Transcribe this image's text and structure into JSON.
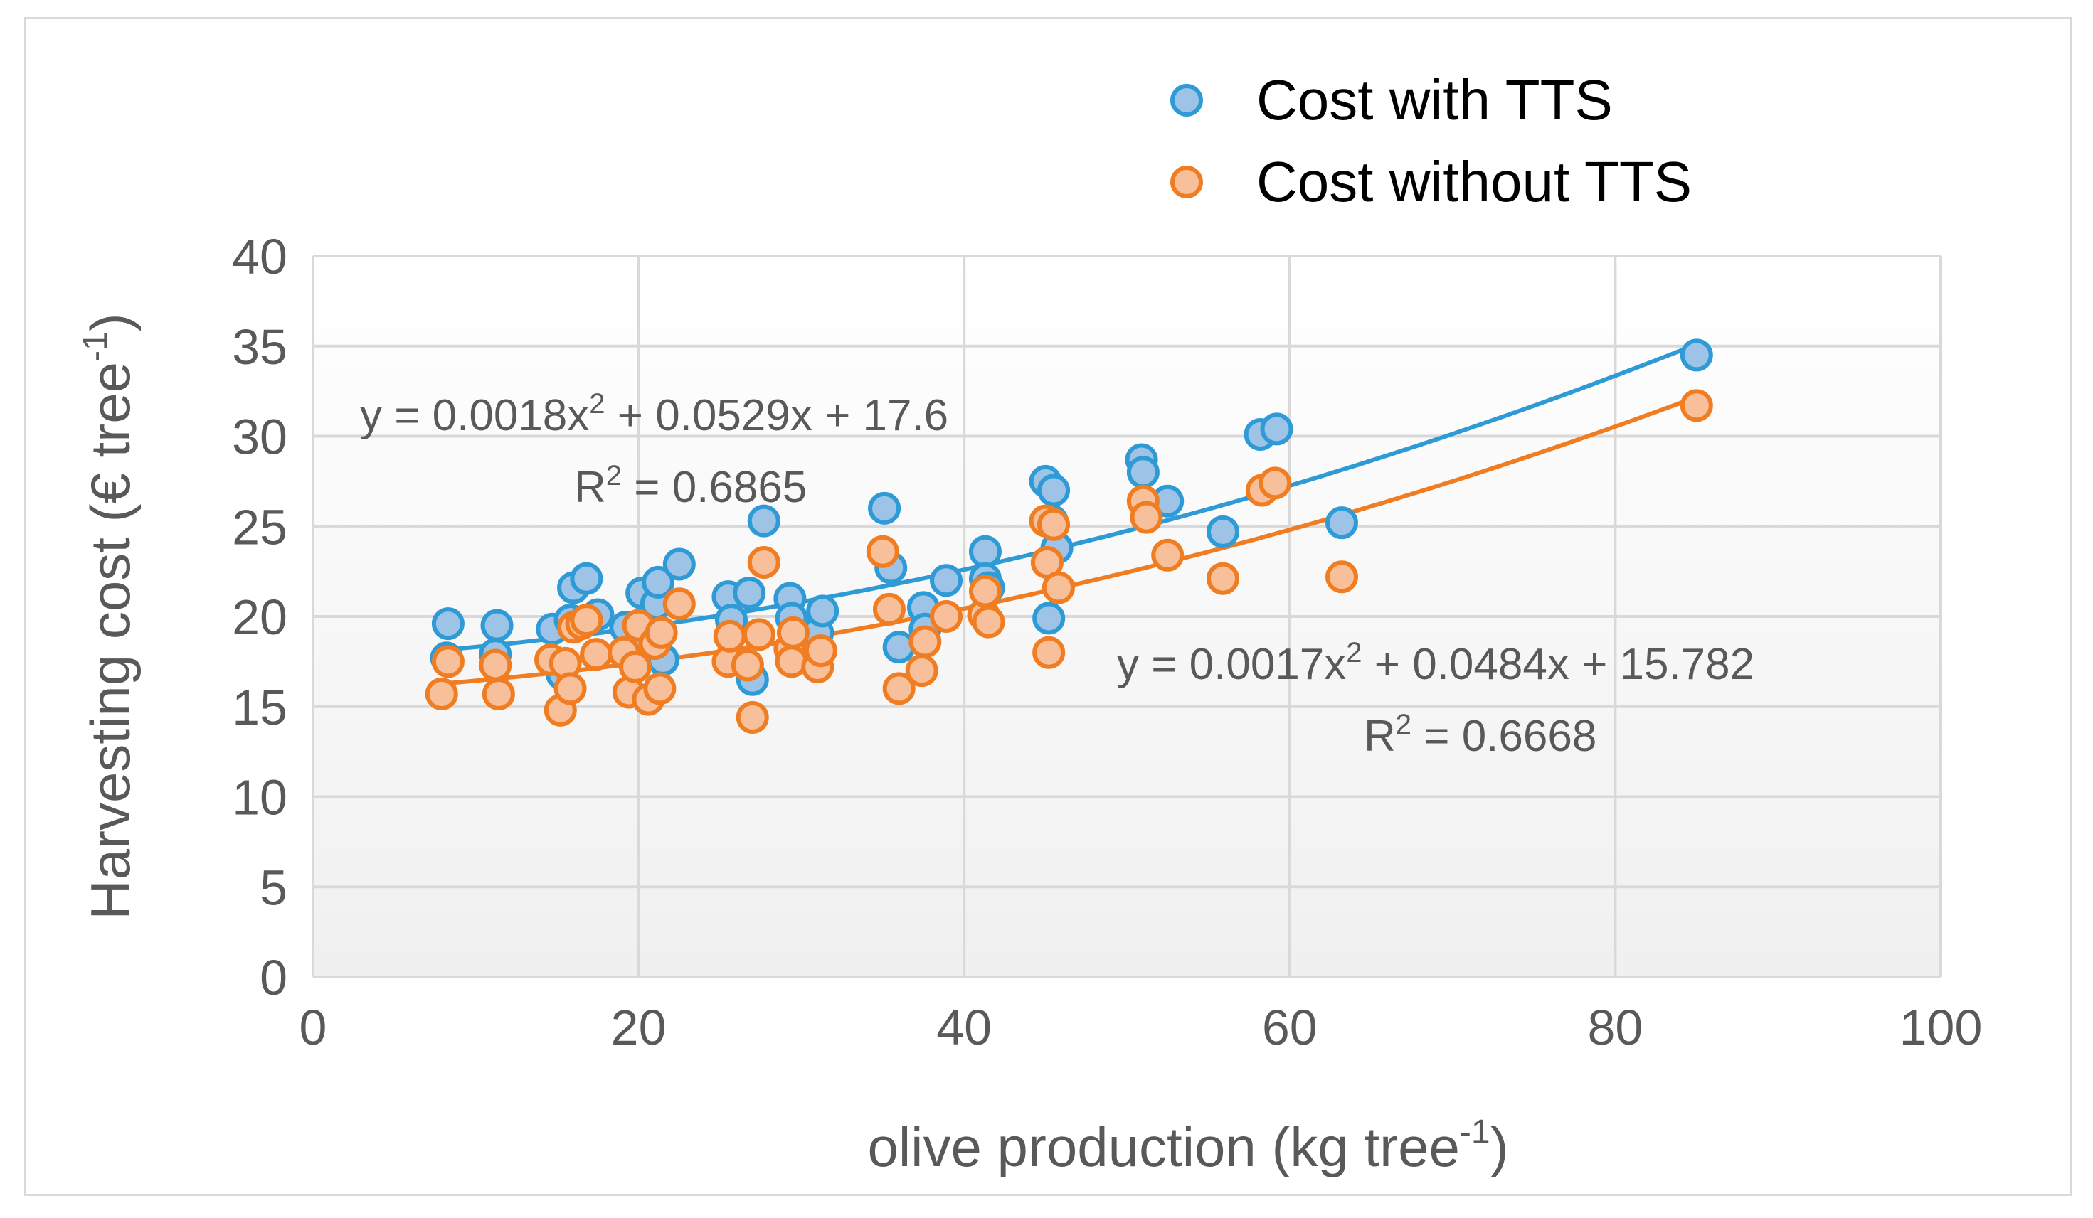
{
  "chart_data": {
    "type": "scatter",
    "title": "",
    "xlabel": "olive production (kg tree",
    "xlabel_sup": "-1",
    "xlabel_end": ")",
    "ylabel": "Harvesting cost (€ tree",
    "ylabel_sup": "-1",
    "ylabel_end": ")",
    "xlim": [
      0,
      100
    ],
    "ylim": [
      0,
      40
    ],
    "xticks": [
      "0",
      "20",
      "40",
      "60",
      "80",
      "100"
    ],
    "yticks": [
      "0",
      "5",
      "10",
      "15",
      "20",
      "25",
      "30",
      "35",
      "40"
    ],
    "grid": true,
    "legend_position": "top-right",
    "series": [
      {
        "name": "Cost with TTS",
        "color": "#2e9bd6",
        "fill": "#9dc3e6",
        "points": [
          [
            8.2,
            17.7
          ],
          [
            8.3,
            19.6
          ],
          [
            11.2,
            17.9
          ],
          [
            11.3,
            19.5
          ],
          [
            14.7,
            19.3
          ],
          [
            15.3,
            16.8
          ],
          [
            15.8,
            19.8
          ],
          [
            16.0,
            21.6
          ],
          [
            16.8,
            22.1
          ],
          [
            17.5,
            20.1
          ],
          [
            19.2,
            19.4
          ],
          [
            19.8,
            18.1
          ],
          [
            20.2,
            21.3
          ],
          [
            21.1,
            20.7
          ],
          [
            21.2,
            21.9
          ],
          [
            21.5,
            17.6
          ],
          [
            22.5,
            22.9
          ],
          [
            25.5,
            21.1
          ],
          [
            25.7,
            19.8
          ],
          [
            26.8,
            21.3
          ],
          [
            27.0,
            16.5
          ],
          [
            27.7,
            25.3
          ],
          [
            29.3,
            21.0
          ],
          [
            29.4,
            19.9
          ],
          [
            31.0,
            19.1
          ],
          [
            31.3,
            20.3
          ],
          [
            35.1,
            26.0
          ],
          [
            35.5,
            22.7
          ],
          [
            36.0,
            18.3
          ],
          [
            37.5,
            20.5
          ],
          [
            37.6,
            19.3
          ],
          [
            38.9,
            22.0
          ],
          [
            41.3,
            23.6
          ],
          [
            41.3,
            22.1
          ],
          [
            41.5,
            21.6
          ],
          [
            45.0,
            27.5
          ],
          [
            45.2,
            19.9
          ],
          [
            45.4,
            25.3
          ],
          [
            45.5,
            27.0
          ],
          [
            45.7,
            23.8
          ],
          [
            50.9,
            28.7
          ],
          [
            51.0,
            28.0
          ],
          [
            52.5,
            26.4
          ],
          [
            55.9,
            24.7
          ],
          [
            58.2,
            30.1
          ],
          [
            59.2,
            30.4
          ],
          [
            63.2,
            25.2
          ],
          [
            85.0,
            34.5
          ]
        ],
        "fit": {
          "a": 0.0018,
          "b": 0.0529,
          "c": 17.6,
          "range": [
            8.2,
            85.0
          ]
        },
        "equation": "y = 0.0018x",
        "equation_sup": "2",
        "equation_rest": " + 0.0529x + 17.6",
        "r2_label": "R",
        "r2_sup": "2",
        "r2_rest": " = 0.6865"
      },
      {
        "name": "Cost without TTS",
        "color": "#f07d22",
        "fill": "#f8c09a",
        "points": [
          [
            7.9,
            15.7
          ],
          [
            8.3,
            17.5
          ],
          [
            11.2,
            17.3
          ],
          [
            11.4,
            15.7
          ],
          [
            14.6,
            17.6
          ],
          [
            15.2,
            14.8
          ],
          [
            15.5,
            17.4
          ],
          [
            15.8,
            16.0
          ],
          [
            16.0,
            19.4
          ],
          [
            16.5,
            19.6
          ],
          [
            16.8,
            19.8
          ],
          [
            17.4,
            17.9
          ],
          [
            19.1,
            18.0
          ],
          [
            19.4,
            15.8
          ],
          [
            19.8,
            17.2
          ],
          [
            20.0,
            19.5
          ],
          [
            20.6,
            15.4
          ],
          [
            21.0,
            18.5
          ],
          [
            21.3,
            16.0
          ],
          [
            21.4,
            19.1
          ],
          [
            22.5,
            20.7
          ],
          [
            25.5,
            17.5
          ],
          [
            25.6,
            18.9
          ],
          [
            26.7,
            17.3
          ],
          [
            27.0,
            14.4
          ],
          [
            27.4,
            19.0
          ],
          [
            27.7,
            23.0
          ],
          [
            29.3,
            18.2
          ],
          [
            29.4,
            17.5
          ],
          [
            29.5,
            19.1
          ],
          [
            31.0,
            17.2
          ],
          [
            31.2,
            18.1
          ],
          [
            35.0,
            23.6
          ],
          [
            35.4,
            20.4
          ],
          [
            36.0,
            16.0
          ],
          [
            37.4,
            17.0
          ],
          [
            37.6,
            18.6
          ],
          [
            38.9,
            20.0
          ],
          [
            41.2,
            20.1
          ],
          [
            41.3,
            21.4
          ],
          [
            41.5,
            19.7
          ],
          [
            45.0,
            25.3
          ],
          [
            45.1,
            23.0
          ],
          [
            45.2,
            18.0
          ],
          [
            45.5,
            25.1
          ],
          [
            45.8,
            21.6
          ],
          [
            51.0,
            26.4
          ],
          [
            51.2,
            25.5
          ],
          [
            52.5,
            23.4
          ],
          [
            55.9,
            22.1
          ],
          [
            58.3,
            27.0
          ],
          [
            59.1,
            27.4
          ],
          [
            63.2,
            22.2
          ],
          [
            85.0,
            31.7
          ]
        ],
        "fit": {
          "a": 0.0017,
          "b": 0.0484,
          "c": 15.782,
          "range": [
            8.0,
            85.0
          ]
        },
        "equation": "y = 0.0017x",
        "equation_sup": "2",
        "equation_rest": " + 0.0484x + 15.782",
        "r2_label": "R",
        "r2_sup": "2",
        "r2_rest": " = 0.6668"
      }
    ]
  }
}
